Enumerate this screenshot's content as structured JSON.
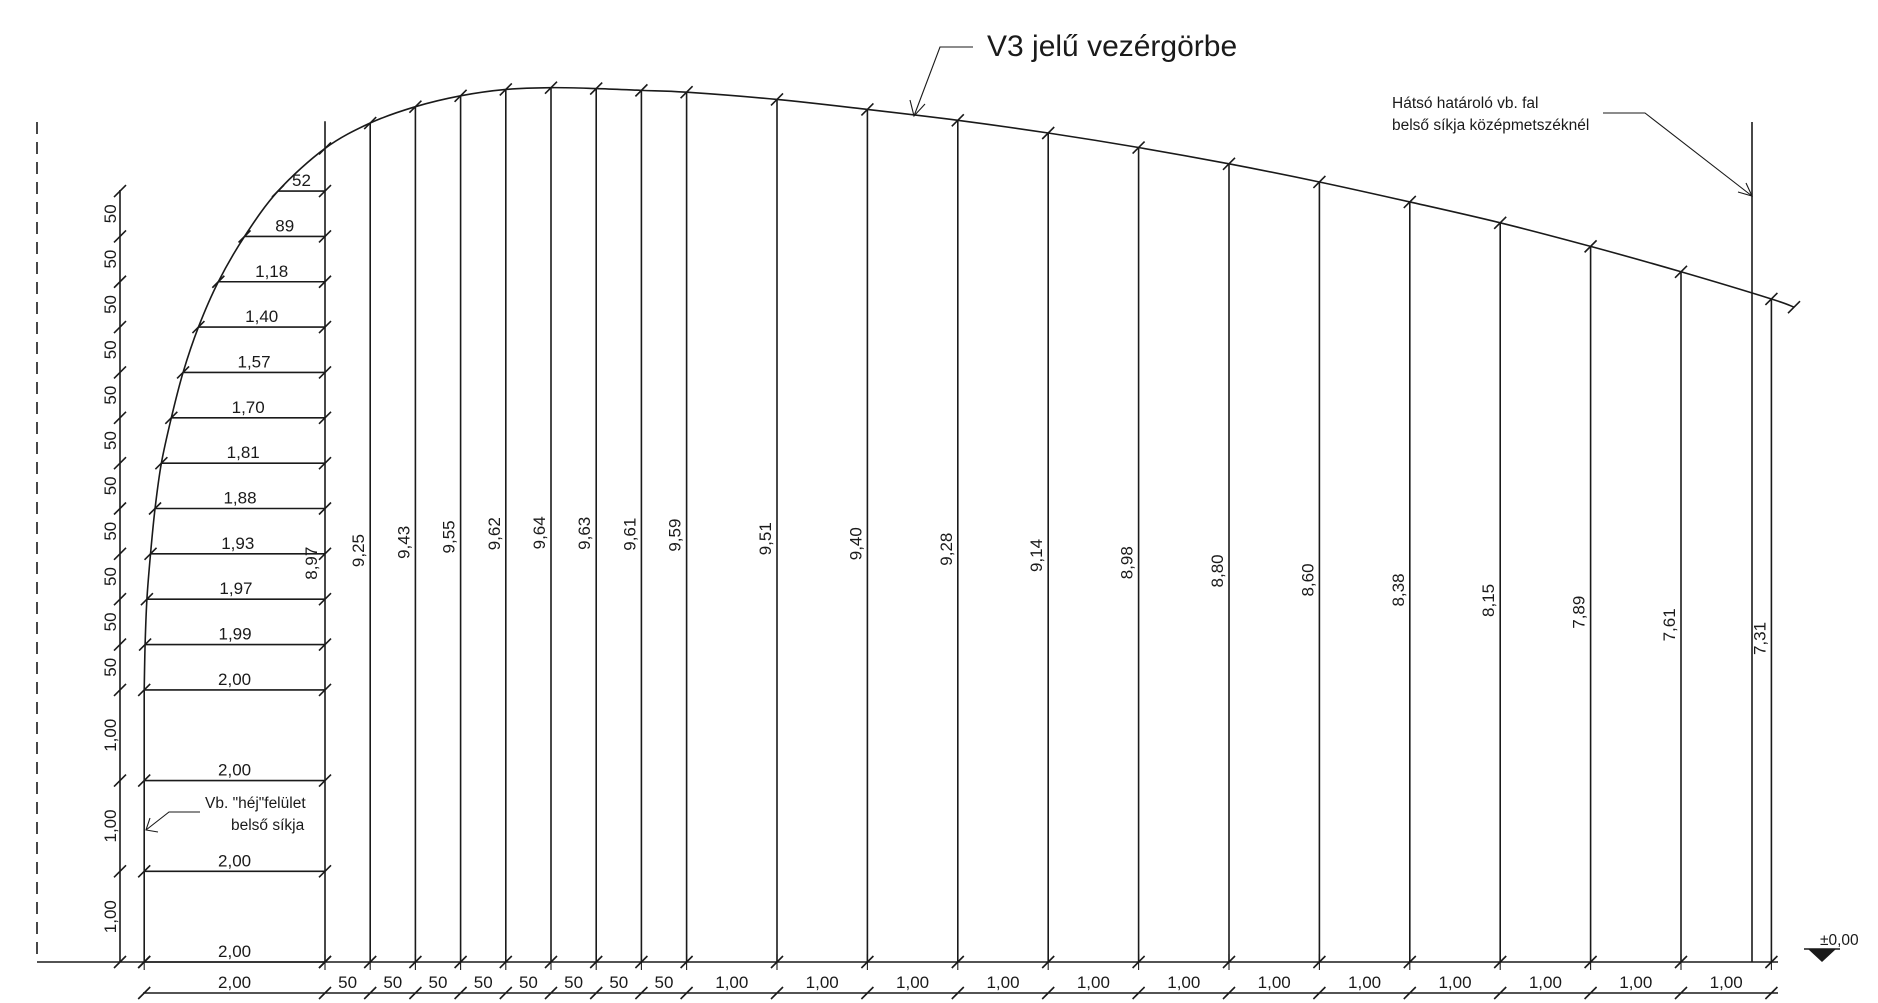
{
  "title": "V3 jelű vezérgörbe",
  "wall_note": [
    "Hátsó határoló vb. fal",
    "belső síkja középmetszéknél"
  ],
  "shell_note": [
    "Vb. \"héj\"felület",
    "belső síkja"
  ],
  "level_label": "±0,00",
  "left_heights": [
    {
      "y": 1.0,
      "label": "1,00"
    },
    {
      "y": 1.0,
      "label": "1,00"
    },
    {
      "y": 1.0,
      "label": "1,00"
    },
    {
      "y": 0.5,
      "label": "50"
    },
    {
      "y": 0.5,
      "label": "50"
    },
    {
      "y": 0.5,
      "label": "50"
    },
    {
      "y": 0.5,
      "label": "50"
    },
    {
      "y": 0.5,
      "label": "50"
    },
    {
      "y": 0.5,
      "label": "50"
    },
    {
      "y": 0.5,
      "label": "50"
    },
    {
      "y": 0.5,
      "label": "50"
    },
    {
      "y": 0.5,
      "label": "50"
    },
    {
      "y": 0.5,
      "label": "50"
    },
    {
      "y": 0.5,
      "label": "50"
    }
  ],
  "horizontal_offsets": [
    {
      "h": 0.0,
      "d": 2.0,
      "label": "2,00"
    },
    {
      "h": 1.0,
      "d": 2.0,
      "label": "2,00"
    },
    {
      "h": 2.0,
      "d": 2.0,
      "label": "2,00"
    },
    {
      "h": 3.0,
      "d": 2.0,
      "label": "2,00"
    },
    {
      "h": 3.5,
      "d": 1.99,
      "label": "1,99"
    },
    {
      "h": 4.0,
      "d": 1.97,
      "label": "1,97"
    },
    {
      "h": 4.5,
      "d": 1.93,
      "label": "1,93"
    },
    {
      "h": 5.0,
      "d": 1.88,
      "label": "1,88"
    },
    {
      "h": 5.5,
      "d": 1.81,
      "label": "1,81"
    },
    {
      "h": 6.0,
      "d": 1.7,
      "label": "1,70"
    },
    {
      "h": 6.5,
      "d": 1.57,
      "label": "1,57"
    },
    {
      "h": 7.0,
      "d": 1.4,
      "label": "1,40"
    },
    {
      "h": 7.5,
      "d": 1.18,
      "label": "1,18"
    },
    {
      "h": 8.0,
      "d": 0.89,
      "label": "89"
    },
    {
      "h": 8.5,
      "d": 0.52,
      "label": "52"
    }
  ],
  "ordinates": [
    {
      "x": 0.0,
      "h": 8.97,
      "label": "8,97"
    },
    {
      "x": 0.5,
      "h": 9.25,
      "label": "9,25"
    },
    {
      "x": 1.0,
      "h": 9.43,
      "label": "9,43"
    },
    {
      "x": 1.5,
      "h": 9.55,
      "label": "9,55"
    },
    {
      "x": 2.0,
      "h": 9.62,
      "label": "9,62"
    },
    {
      "x": 2.5,
      "h": 9.64,
      "label": "9,64"
    },
    {
      "x": 3.0,
      "h": 9.63,
      "label": "9,63"
    },
    {
      "x": 3.5,
      "h": 9.61,
      "label": "9,61"
    },
    {
      "x": 4.0,
      "h": 9.59,
      "label": "9,59"
    },
    {
      "x": 5.0,
      "h": 9.51,
      "label": "9,51"
    },
    {
      "x": 6.0,
      "h": 9.4,
      "label": "9,40"
    },
    {
      "x": 7.0,
      "h": 9.28,
      "label": "9,28"
    },
    {
      "x": 8.0,
      "h": 9.14,
      "label": "9,14"
    },
    {
      "x": 9.0,
      "h": 8.98,
      "label": "8,98"
    },
    {
      "x": 10.0,
      "h": 8.8,
      "label": "8,80"
    },
    {
      "x": 11.0,
      "h": 8.6,
      "label": "8,60"
    },
    {
      "x": 12.0,
      "h": 8.38,
      "label": "8,38"
    },
    {
      "x": 13.0,
      "h": 8.15,
      "label": "8,15"
    },
    {
      "x": 14.0,
      "h": 7.89,
      "label": "7,89"
    },
    {
      "x": 15.0,
      "h": 7.61,
      "label": "7,61"
    },
    {
      "x": 16.0,
      "h": 7.31,
      "label": "7,31"
    }
  ],
  "bottom_spans": [
    {
      "w": 2.0,
      "label": "2,00"
    },
    {
      "w": 0.5,
      "label": "50"
    },
    {
      "w": 0.5,
      "label": "50"
    },
    {
      "w": 0.5,
      "label": "50"
    },
    {
      "w": 0.5,
      "label": "50"
    },
    {
      "w": 0.5,
      "label": "50"
    },
    {
      "w": 0.5,
      "label": "50"
    },
    {
      "w": 0.5,
      "label": "50"
    },
    {
      "w": 0.5,
      "label": "50"
    },
    {
      "w": 1.0,
      "label": "1,00"
    },
    {
      "w": 1.0,
      "label": "1,00"
    },
    {
      "w": 1.0,
      "label": "1,00"
    },
    {
      "w": 1.0,
      "label": "1,00"
    },
    {
      "w": 1.0,
      "label": "1,00"
    },
    {
      "w": 1.0,
      "label": "1,00"
    },
    {
      "w": 1.0,
      "label": "1,00"
    },
    {
      "w": 1.0,
      "label": "1,00"
    },
    {
      "w": 1.0,
      "label": "1,00"
    },
    {
      "w": 1.0,
      "label": "1,00"
    },
    {
      "w": 1.0,
      "label": "1,00"
    },
    {
      "w": 1.0,
      "label": "1,00"
    }
  ]
}
